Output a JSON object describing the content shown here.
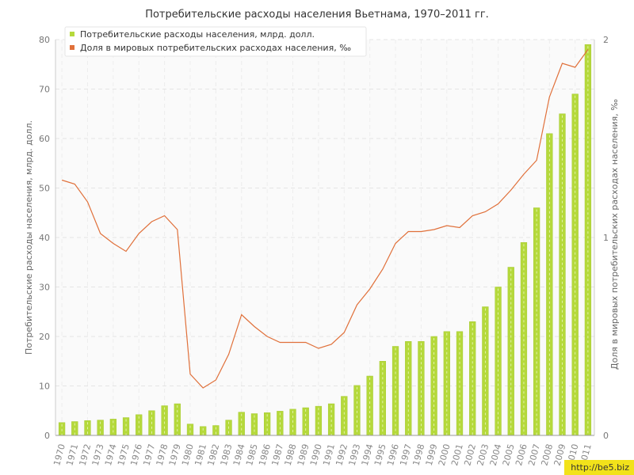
{
  "chart_data": {
    "type": "bar",
    "title": "Потребительские расходы населения Вьетнама, 1970–2011 гг.",
    "ylabel": "Потребительские расходы населения, млрд. долл.",
    "ylabel_right": "Доля в мировых потребительских расходах населения, ‰",
    "ylim": [
      0,
      80
    ],
    "yticks": [
      "0",
      "10",
      "20",
      "30",
      "40",
      "50",
      "60",
      "70",
      "80"
    ],
    "ylim_right": [
      0,
      2
    ],
    "yticks_right": [
      "0",
      "1",
      "2"
    ],
    "legend_position": "top-left",
    "grid": true,
    "categories": [
      "1970",
      "1971",
      "1972",
      "1973",
      "1974",
      "1975",
      "1976",
      "1977",
      "1978",
      "1979",
      "1980",
      "1981",
      "1982",
      "1983",
      "1984",
      "1985",
      "1986",
      "1987",
      "1988",
      "1989",
      "1990",
      "1991",
      "1992",
      "1993",
      "1994",
      "1995",
      "1996",
      "1997",
      "1998",
      "1999",
      "2000",
      "2001",
      "2002",
      "2003",
      "2004",
      "2005",
      "2006",
      "2007",
      "2008",
      "2009",
      "2010",
      "2011"
    ],
    "series": [
      {
        "name": "Потребительские расходы населения, млрд. долл.",
        "type": "bar",
        "axis": "left",
        "color": "#b5d93b",
        "values": [
          2.6,
          2.8,
          3.0,
          3.1,
          3.3,
          3.6,
          4.2,
          5.0,
          6.0,
          6.4,
          2.3,
          1.8,
          2.0,
          3.1,
          4.7,
          4.4,
          4.6,
          4.9,
          5.3,
          5.6,
          5.9,
          6.4,
          7.9,
          10.1,
          12.0,
          15.0,
          18.0,
          19.0,
          19.0,
          20.0,
          21.0,
          21.0,
          23.0,
          26.0,
          30.0,
          34.0,
          39.0,
          46.0,
          61.0,
          65.0,
          69.0,
          79.0
        ]
      },
      {
        "name": "Доля в мировых потребительских расходах населения, ‰",
        "type": "line",
        "axis": "right",
        "color": "#e0703a",
        "values": [
          1.29,
          1.27,
          1.18,
          1.02,
          0.97,
          0.93,
          1.02,
          1.08,
          1.11,
          1.04,
          0.31,
          0.24,
          0.28,
          0.41,
          0.61,
          0.55,
          0.5,
          0.47,
          0.47,
          0.47,
          0.44,
          0.46,
          0.52,
          0.66,
          0.74,
          0.84,
          0.97,
          1.03,
          1.03,
          1.04,
          1.06,
          1.05,
          1.11,
          1.13,
          1.17,
          1.24,
          1.32,
          1.39,
          1.71,
          1.88,
          1.86,
          1.95
        ]
      }
    ]
  },
  "watermark": "http://be5.biz"
}
